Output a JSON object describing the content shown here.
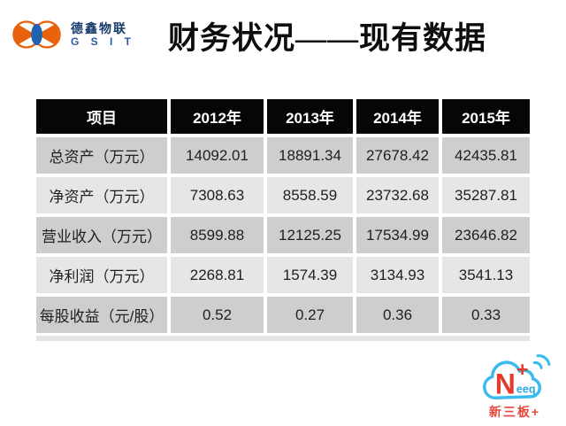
{
  "brand": {
    "name_cn": "德鑫物联",
    "name_en": "G S I T"
  },
  "title": "财务状况——现有数据",
  "table": {
    "columns": [
      "项目",
      "2012年",
      "2013年",
      "2014年",
      "2015年"
    ],
    "rows": [
      {
        "label": "总资产（万元）",
        "values": [
          "14092.01",
          "18891.34",
          "27678.42",
          "42435.81"
        ]
      },
      {
        "label": "净资产（万元）",
        "values": [
          "7308.63",
          "8558.59",
          "23732.68",
          "35287.81"
        ]
      },
      {
        "label": "营业收入（万元）",
        "values": [
          "8599.88",
          "12125.25",
          "17534.99",
          "23646.82"
        ]
      },
      {
        "label": "净利润（万元）",
        "values": [
          "2268.81",
          "1574.39",
          "3134.93",
          "3541.13"
        ]
      },
      {
        "label": "每股收益（元/股）",
        "values": [
          "0.52",
          "0.27",
          "0.36",
          "0.33"
        ]
      }
    ]
  },
  "neeq": {
    "letter": "N",
    "plus": "+",
    "suffix": "eeq",
    "caption": "新三板+"
  },
  "colors": {
    "header_bg": "#060606",
    "row_dark": "#cecece",
    "row_light": "#e6e6e6",
    "brand_orange": "#e8620c",
    "brand_blue": "#1f63b0",
    "neeq_blue": "#3bbcee",
    "neeq_red": "#e8392e"
  },
  "icons": {
    "gsit_logo": "two-orange-circles-with-blue-lens",
    "neeq_cloud": "cloud-with-signal-waves"
  }
}
